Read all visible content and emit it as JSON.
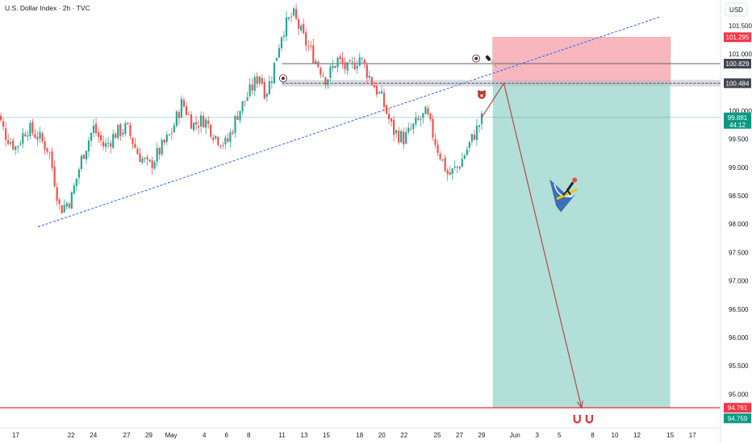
{
  "header": {
    "title": "U.S. Dollar Index · 2h · TVC",
    "currency_label": "USD"
  },
  "colors": {
    "up": "#26a69a",
    "down": "#ef5350",
    "stop_zone": "#f7b7bd",
    "target_zone": "#b2dfd7",
    "trendline": "#2962ff",
    "level_line": "#5d606b",
    "target_line": "#e0303a",
    "arrow": "#b24a4a"
  },
  "price_tags": {
    "stop": "101.295",
    "resistance": "100.829",
    "entry": "100.484",
    "current_price": "99.881",
    "countdown": "44:12",
    "target_red": "94.761",
    "target_green": "94.759"
  },
  "chart_data": {
    "type": "candlestick",
    "ylim": [
      94.65,
      102.0
    ],
    "y_ticks": [
      "101.500",
      "101.000",
      "100.000",
      "99.500",
      "99.000",
      "98.500",
      "98.000",
      "97.500",
      "97.000",
      "96.500",
      "96.000",
      "95.500",
      "95.000"
    ],
    "y_tick_values": [
      101.5,
      101.0,
      100.0,
      99.5,
      99.0,
      98.5,
      98.0,
      97.5,
      97.0,
      96.5,
      96.0,
      95.5,
      95.0
    ],
    "x_ticks": [
      "17",
      "22",
      "24",
      "27",
      "29",
      "May",
      "4",
      "6",
      "8",
      "11",
      "13",
      "15",
      "18",
      "20",
      "22",
      "25",
      "27",
      "29",
      "Jun",
      "3",
      "5",
      "8",
      "10",
      "12",
      "15",
      "17"
    ],
    "x_tick_days": [
      -14,
      -9,
      -7,
      -4,
      -2,
      0,
      3,
      5,
      7,
      10,
      12,
      14,
      17,
      19,
      21,
      24,
      26,
      28,
      31,
      33,
      35,
      38,
      40,
      42,
      45,
      47
    ],
    "price_path": [
      [
        -16,
        100.15
      ],
      [
        -15,
        99.6
      ],
      [
        -14,
        99.35
      ],
      [
        -13,
        99.7
      ],
      [
        -12,
        99.55
      ],
      [
        -11,
        99.3
      ],
      [
        -10,
        98.25
      ],
      [
        -9,
        98.45
      ],
      [
        -8,
        99.2
      ],
      [
        -7,
        99.7
      ],
      [
        -6,
        99.35
      ],
      [
        -5,
        99.6
      ],
      [
        -4,
        99.7
      ],
      [
        -3,
        99.25
      ],
      [
        -2,
        99.0
      ],
      [
        -1,
        99.3
      ],
      [
        0,
        99.6
      ],
      [
        1,
        100.15
      ],
      [
        2,
        99.75
      ],
      [
        3,
        99.85
      ],
      [
        4,
        99.55
      ],
      [
        5,
        99.4
      ],
      [
        6,
        99.95
      ],
      [
        7,
        100.3
      ],
      [
        8,
        100.65
      ],
      [
        8.5,
        100.3
      ],
      [
        9,
        100.55
      ],
      [
        10,
        101.4
      ],
      [
        11,
        101.7
      ],
      [
        12,
        101.25
      ],
      [
        13,
        100.9
      ],
      [
        14,
        100.55
      ],
      [
        15,
        100.9
      ],
      [
        16,
        100.7
      ],
      [
        17,
        100.95
      ],
      [
        18,
        100.55
      ],
      [
        19,
        100.2
      ],
      [
        20,
        99.65
      ],
      [
        21,
        99.5
      ],
      [
        22,
        99.75
      ],
      [
        23,
        99.95
      ],
      [
        24,
        99.35
      ],
      [
        25,
        98.85
      ],
      [
        26,
        99.05
      ],
      [
        27,
        99.45
      ],
      [
        28,
        99.85
      ]
    ],
    "annotations": {
      "trendline": {
        "from": [
          -12,
          97.95
        ],
        "to": [
          44,
          101.65
        ]
      },
      "resistance_level": {
        "from": [
          10,
          100.829
        ],
        "to": [
          54,
          100.829
        ]
      },
      "entry_level": {
        "from": [
          10,
          100.484
        ],
        "to": [
          54,
          100.484
        ]
      },
      "stop_zone": {
        "from_day": 29,
        "to_day": 45,
        "bottom": 100.484,
        "top": 101.295
      },
      "target_zone": {
        "from_day": 29,
        "to_day": 45,
        "bottom": 94.759,
        "top": 100.484
      },
      "forecast_path": [
        [
          28,
          99.881
        ],
        [
          30,
          100.484
        ],
        [
          37,
          94.761
        ]
      ],
      "target_level": 94.761
    }
  }
}
